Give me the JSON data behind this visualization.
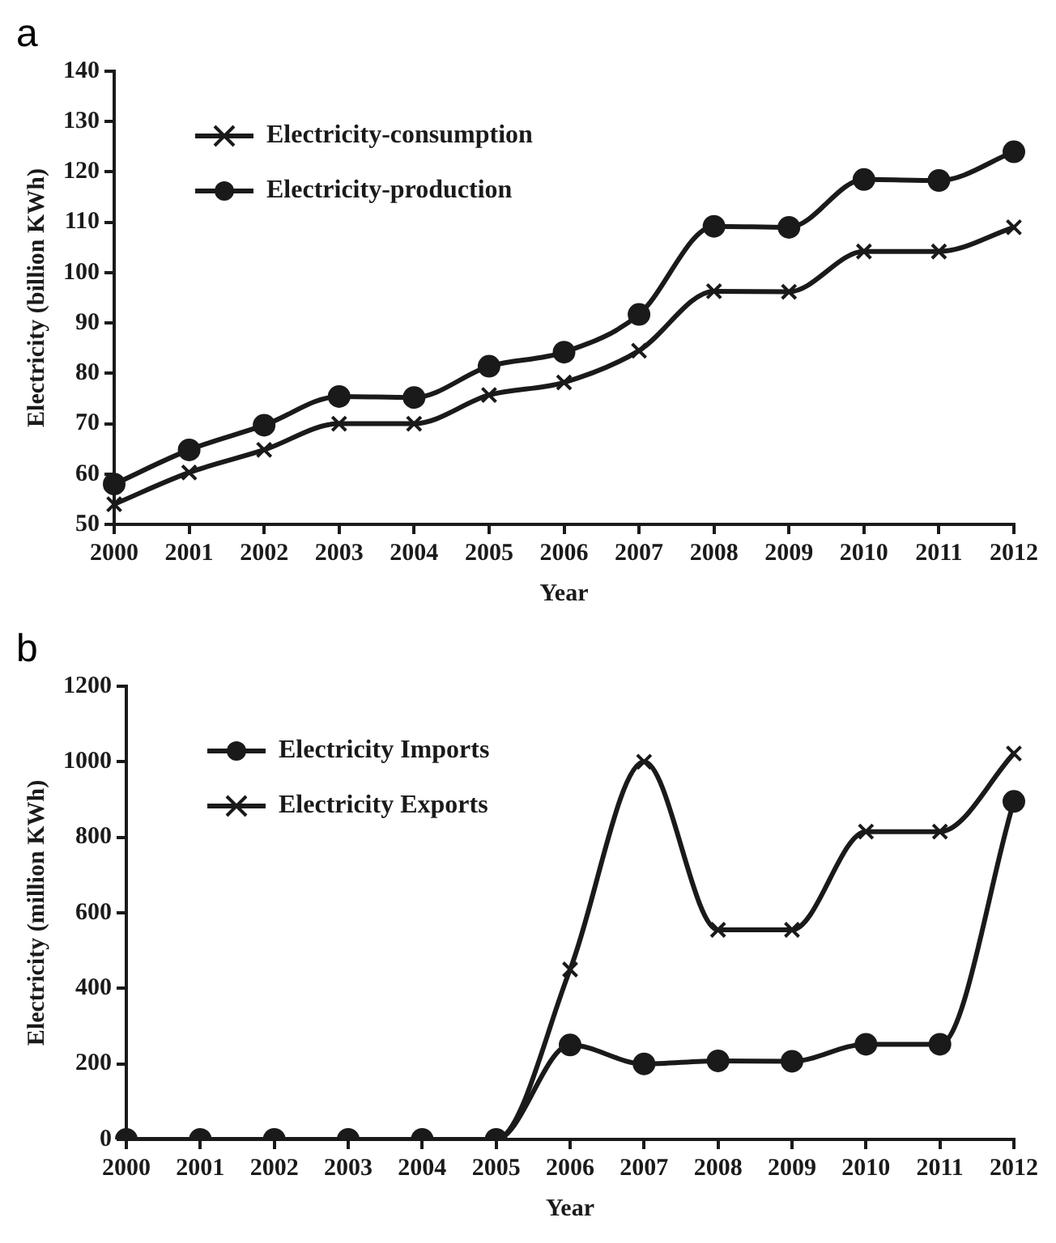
{
  "chart_data": [
    {
      "type": "line",
      "title": "a",
      "xlabel": "Year",
      "ylabel": "Electricity (billion KWh)",
      "categories": [
        "2000",
        "2001",
        "2002",
        "2003",
        "2004",
        "2005",
        "2006",
        "2007",
        "2008",
        "2009",
        "2010",
        "2011",
        "2012"
      ],
      "series": [
        {
          "name": "Electricity-consumption",
          "color": "#1a1a1a",
          "marker": "cross",
          "values": [
            54,
            60.3,
            64.8,
            70,
            70,
            75.7,
            78.2,
            84.5,
            96.3,
            96.2,
            104.2,
            104.2,
            109
          ]
        },
        {
          "name": "Electricity-production",
          "color": "#1a1a1a",
          "marker": "circle",
          "values": [
            58,
            64.8,
            69.7,
            75.4,
            75.2,
            81.4,
            84.2,
            91.7,
            109.2,
            109,
            118.5,
            118.3,
            124
          ]
        }
      ],
      "ylim": [
        50,
        140
      ],
      "yticks": [
        50,
        60,
        70,
        80,
        90,
        100,
        110,
        120,
        130,
        140
      ],
      "grid": false,
      "legend": "top left"
    },
    {
      "type": "line",
      "title": "b",
      "xlabel": "Year",
      "ylabel": "Electricity (million KWh)",
      "categories": [
        "2000",
        "2001",
        "2002",
        "2003",
        "2004",
        "2005",
        "2006",
        "2007",
        "2008",
        "2009",
        "2010",
        "2011",
        "2012"
      ],
      "series": [
        {
          "name": "Electricity Imports",
          "color": "#1a1a1a",
          "marker": "circle",
          "values": [
            0,
            0,
            0,
            0,
            0,
            0,
            250,
            200,
            208,
            207,
            252,
            252,
            895
          ]
        },
        {
          "name": "Electricity Exports",
          "color": "#1a1a1a",
          "marker": "cross",
          "values": [
            0,
            0,
            0,
            0,
            0,
            0,
            450,
            1000,
            555,
            555,
            815,
            815,
            1022
          ]
        }
      ],
      "ylim": [
        0,
        1200
      ],
      "yticks": [
        0,
        200,
        400,
        600,
        800,
        1000,
        1200
      ],
      "grid": false,
      "legend": "top left"
    }
  ]
}
